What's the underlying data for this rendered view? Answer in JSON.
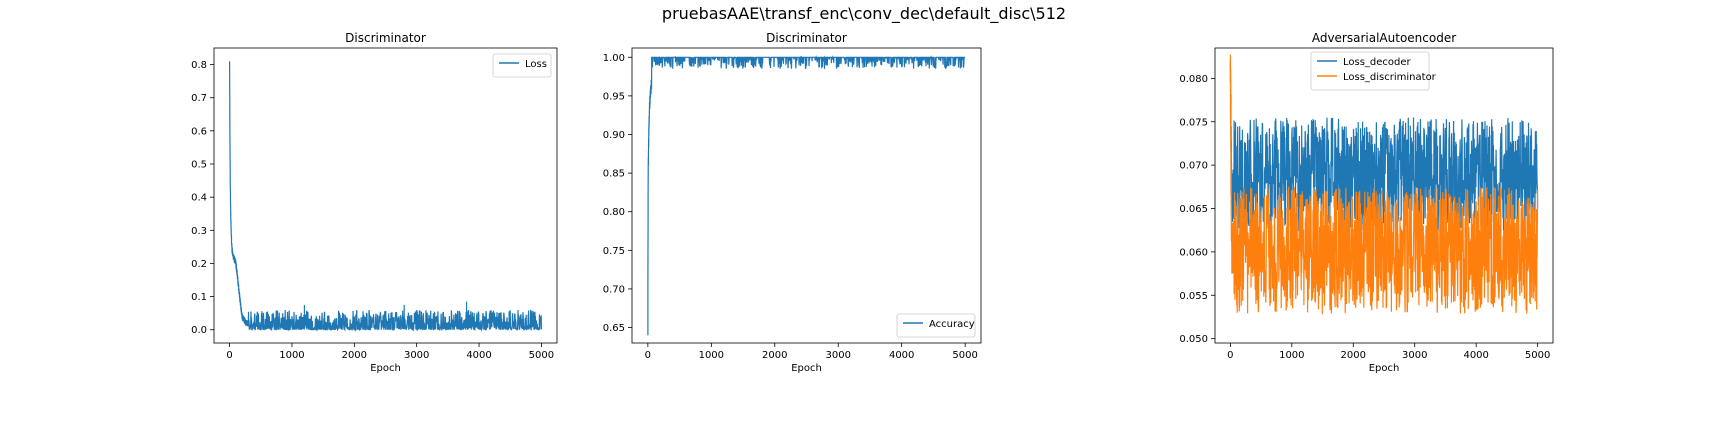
{
  "figure": {
    "suptitle": "pruebasAAE\\transf_enc\\conv_dec\\default_disc\\512"
  },
  "chart_data": [
    {
      "type": "line",
      "title": "Discriminator",
      "xlabel": "Epoch",
      "ylabel": "",
      "xlim": [
        -250,
        5250
      ],
      "ylim": [
        -0.04,
        0.85
      ],
      "xticks": [
        0,
        1000,
        2000,
        3000,
        4000,
        5000
      ],
      "yticks": [
        0.0,
        0.1,
        0.2,
        0.3,
        0.4,
        0.5,
        0.6,
        0.7,
        0.8
      ],
      "ytick_labels": [
        "0.0",
        "0.1",
        "0.2",
        "0.3",
        "0.4",
        "0.5",
        "0.6",
        "0.7",
        "0.8"
      ],
      "legend": {
        "position": "top-right"
      },
      "series": [
        {
          "name": "Loss",
          "color": "#1f77b4",
          "x": [
            0,
            5,
            10,
            20,
            30,
            40,
            60,
            80,
            100,
            120,
            150,
            180,
            200,
            230,
            260,
            300,
            350,
            400,
            500,
            600,
            700,
            800,
            900,
            1000,
            1100,
            1200,
            1300,
            1400,
            1500,
            1600,
            1700,
            1800,
            1900,
            2000,
            2100,
            2200,
            2300,
            2400,
            2500,
            2600,
            2700,
            2800,
            2900,
            3000,
            3100,
            3200,
            3300,
            3400,
            3500,
            3600,
            3700,
            3800,
            3900,
            4000,
            4100,
            4200,
            4300,
            4400,
            4500,
            4600,
            4700,
            4800,
            4900,
            5000
          ],
          "y": [
            0.81,
            0.6,
            0.45,
            0.33,
            0.27,
            0.24,
            0.22,
            0.21,
            0.2,
            0.17,
            0.12,
            0.07,
            0.04,
            0.03,
            0.02,
            0.02,
            0.03,
            0.02,
            0.02,
            0.03,
            0.02,
            0.03,
            0.02,
            0.03,
            0.03,
            0.02,
            0.03,
            0.02,
            0.03,
            0.02,
            0.03,
            0.02,
            0.03,
            0.03,
            0.02,
            0.03,
            0.02,
            0.03,
            0.02,
            0.03,
            0.02,
            0.03,
            0.02,
            0.03,
            0.02,
            0.03,
            0.02,
            0.03,
            0.02,
            0.03,
            0.02,
            0.03,
            0.03,
            0.02,
            0.03,
            0.02,
            0.03,
            0.02,
            0.03,
            0.02,
            0.03,
            0.02,
            0.03,
            0.02
          ],
          "noise_band": [
            0.0,
            0.06
          ],
          "spike_peaks": [
            {
              "x": 1200,
              "y": 0.075
            },
            {
              "x": 2800,
              "y": 0.075
            },
            {
              "x": 3800,
              "y": 0.085
            }
          ]
        }
      ]
    },
    {
      "type": "line",
      "title": "Discriminator",
      "xlabel": "Epoch",
      "ylabel": "",
      "xlim": [
        -250,
        5250
      ],
      "ylim": [
        0.63,
        1.012
      ],
      "xticks": [
        0,
        1000,
        2000,
        3000,
        4000,
        5000
      ],
      "yticks": [
        0.65,
        0.7,
        0.75,
        0.8,
        0.85,
        0.9,
        0.95,
        1.0
      ],
      "ytick_labels": [
        "0.65",
        "0.70",
        "0.75",
        "0.80",
        "0.85",
        "0.90",
        "0.95",
        "1.00"
      ],
      "legend": {
        "position": "bottom-right"
      },
      "series": [
        {
          "name": "Accuracy",
          "color": "#1f77b4",
          "x": [
            0,
            2,
            5,
            10,
            15,
            20,
            30,
            40,
            60,
            80,
            100,
            150,
            200,
            300,
            500,
            1000,
            1500,
            2000,
            2500,
            3000,
            3500,
            4000,
            4500,
            5000
          ],
          "y": [
            0.64,
            0.76,
            0.85,
            0.88,
            0.9,
            0.92,
            0.94,
            0.95,
            0.97,
            0.98,
            0.99,
            0.995,
            0.997,
            0.997,
            0.997,
            0.997,
            0.997,
            0.997,
            0.997,
            0.997,
            0.997,
            0.997,
            0.997,
            0.997
          ],
          "noise_band": [
            0.985,
            1.0
          ]
        }
      ]
    },
    {
      "type": "line",
      "title": "AdversarialAutoencoder",
      "xlabel": "Epoch",
      "ylabel": "",
      "xlim": [
        -250,
        5250
      ],
      "ylim": [
        0.0495,
        0.0835
      ],
      "xticks": [
        0,
        1000,
        2000,
        3000,
        4000,
        5000
      ],
      "yticks": [
        0.05,
        0.055,
        0.06,
        0.065,
        0.07,
        0.075,
        0.08
      ],
      "ytick_labels": [
        "0.050",
        "0.055",
        "0.060",
        "0.065",
        "0.070",
        "0.075",
        "0.080"
      ],
      "legend": {
        "position": "top-center"
      },
      "series": [
        {
          "name": "Loss_decoder",
          "color": "#1f77b4",
          "x": [
            0,
            20,
            40,
            100,
            500,
            1000,
            1500,
            2000,
            2500,
            3000,
            3500,
            4000,
            4500,
            5000
          ],
          "y": [
            0.082,
            0.066,
            0.0665,
            0.067,
            0.0685,
            0.069,
            0.069,
            0.069,
            0.069,
            0.069,
            0.069,
            0.069,
            0.069,
            0.069
          ],
          "noise_band": [
            0.063,
            0.0755
          ]
        },
        {
          "name": "Loss_discriminator",
          "color": "#ff7f0e",
          "x": [
            0,
            20,
            40,
            100,
            500,
            1000,
            1500,
            2000,
            2500,
            3000,
            3500,
            4000,
            4500,
            5000
          ],
          "y": [
            0.081,
            0.06,
            0.0605,
            0.061,
            0.061,
            0.061,
            0.061,
            0.061,
            0.061,
            0.061,
            0.061,
            0.061,
            0.061,
            0.061
          ],
          "noise_band": [
            0.0535,
            0.0675
          ]
        }
      ]
    }
  ]
}
